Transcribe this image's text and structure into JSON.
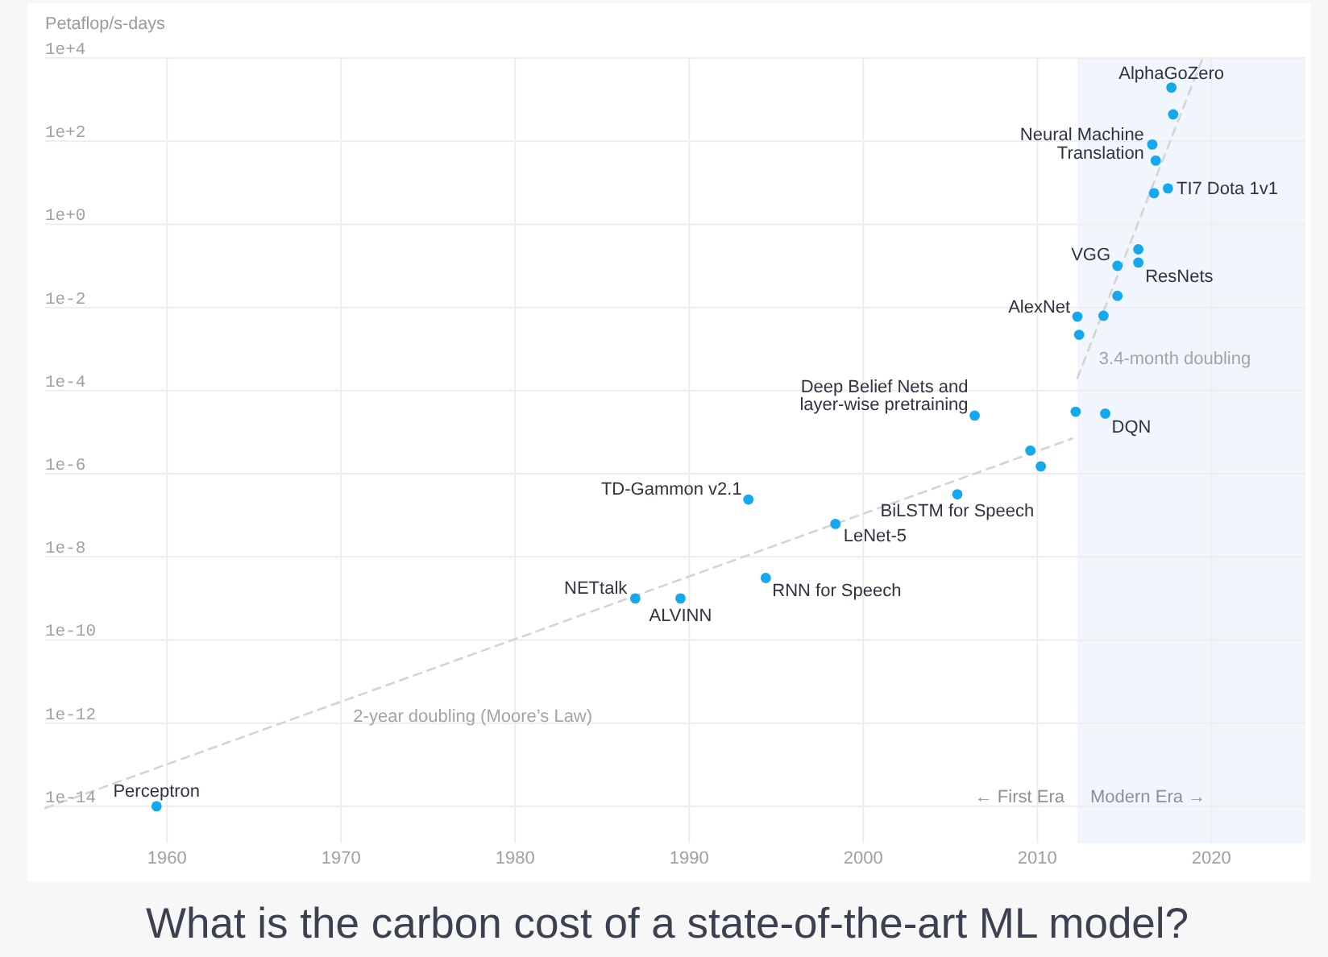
{
  "chart_data": {
    "type": "scatter",
    "title": "What is the carbon cost of a state-of-the-art ML model?",
    "ylabel": "Petaflop/s-days",
    "xlim": [
      1953,
      2025.4
    ],
    "xticks": [
      1960,
      1970,
      1980,
      1990,
      2000,
      2010,
      2020
    ],
    "ylim": [
      1.3e-15,
      10000
    ],
    "yticks": [
      {
        "value": 1e-14,
        "label": "1e-14"
      },
      {
        "value": 1e-12,
        "label": "1e-12"
      },
      {
        "value": 1e-10,
        "label": "1e-10"
      },
      {
        "value": 1e-08,
        "label": "1e-8"
      },
      {
        "value": 1e-06,
        "label": "1e-6"
      },
      {
        "value": 0.0001,
        "label": "1e-4"
      },
      {
        "value": 0.01,
        "label": "1e-2"
      },
      {
        "value": 1,
        "label": "1e+0"
      },
      {
        "value": 100,
        "label": "1e+2"
      },
      {
        "value": 10000,
        "label": "1e+4"
      }
    ],
    "log": "y",
    "grid": true,
    "series": [
      {
        "color": "#14a8ee",
        "marker": "circle",
        "x": [
          1959.4,
          1986.9,
          1989.5,
          1993.4,
          1994.4,
          1998.4,
          2005.4,
          2006.4,
          2009.6,
          2010.2,
          2012.2,
          2012.3,
          2012.4,
          2013.8,
          2013.9,
          2014.6,
          2014.6,
          2015.8,
          2015.8,
          2016.7,
          2016.8,
          2016.6,
          2017.5,
          2017.8,
          2017.7
        ],
        "values": [
          1e-14,
          1e-09,
          1e-09,
          2.4e-07,
          3.1e-09,
          6.2e-08,
          3.2e-07,
          2.5e-05,
          3.6e-06,
          1.5e-06,
          3.1e-05,
          0.006,
          0.0022,
          0.0063,
          2.8e-05,
          0.019,
          0.1,
          0.12,
          0.25,
          5.6,
          34,
          83,
          7.3,
          440,
          1950
        ]
      },
      {
        "type": "line",
        "name": "2-year doubling (Moore’s Law)",
        "color": "#d4d4d4",
        "line_style": "dashed",
        "x": [
          1953,
          2012
        ],
        "values": [
          9e-15,
          7e-06
        ]
      },
      {
        "type": "line",
        "name": "3.4-month doubling",
        "color": "#d4d4d4",
        "line_style": "dashed",
        "x": [
          2012.3,
          2019.5
        ],
        "values": [
          0.0002,
          10000
        ]
      }
    ],
    "bands": [
      {
        "axis": "x",
        "from": 2012.3,
        "to": 2025.4,
        "label": "Modern Era →",
        "color": "#f0f6fb"
      }
    ],
    "annotations": [
      {
        "text": "Perceptron",
        "x": 1959.4,
        "y": 1e-14
      },
      {
        "text": "NETtalk",
        "x": 1986.9,
        "y": 1e-09
      },
      {
        "text": "ALVINN",
        "x": 1989.5,
        "y": 1e-09
      },
      {
        "text": "TD-Gammon v2.1",
        "x": 1993.4,
        "y": 2.4e-07
      },
      {
        "text": "RNN for Speech",
        "x": 1994.4,
        "y": 3.1e-09
      },
      {
        "text": "LeNet-5",
        "x": 1998.4,
        "y": 6.2e-08
      },
      {
        "text": "BiLSTM for Speech",
        "x": 2005.4,
        "y": 3.2e-07
      },
      {
        "text": "Deep Belief Nets and\nlayer-wise pretraining",
        "x": 2006.4,
        "y": 2.5e-05
      },
      {
        "text": "AlexNet",
        "x": 2012.3,
        "y": 0.006
      },
      {
        "text": "DQN",
        "x": 2013.9,
        "y": 2.8e-05
      },
      {
        "text": "VGG",
        "x": 2014.6,
        "y": 0.1
      },
      {
        "text": "ResNets",
        "x": 2015.8,
        "y": 0.12
      },
      {
        "text": "Neural Machine\nTranslation",
        "x": 2016.6,
        "y": 83
      },
      {
        "text": "TI7 Dota 1v1",
        "x": 2017.5,
        "y": 7.3
      },
      {
        "text": "AlphaGoZero",
        "x": 2017.7,
        "y": 1950
      },
      "← First Era"
    ]
  }
}
